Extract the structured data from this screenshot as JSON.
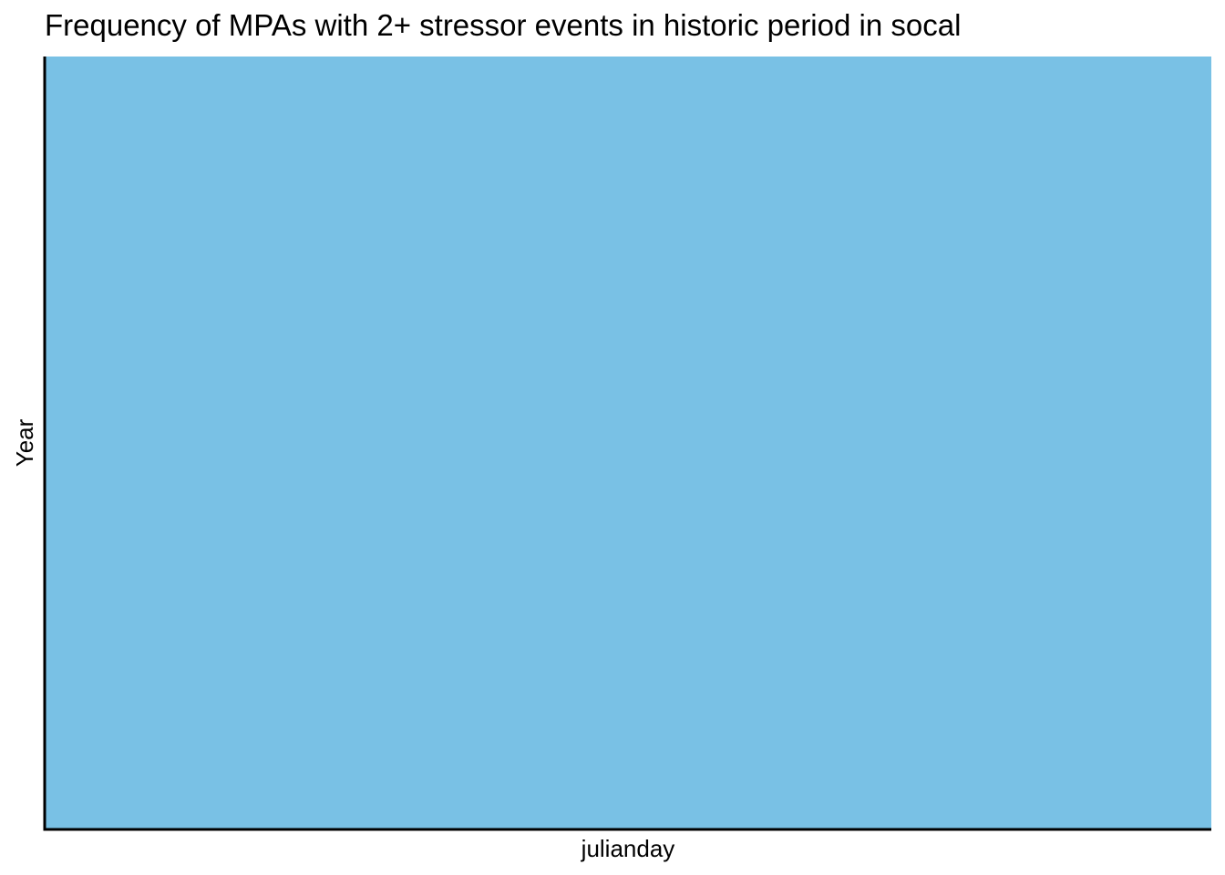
{
  "chart_data": {
    "type": "heatmap",
    "title": "Frequency of MPAs with 2+ stressor events in historic period in socal",
    "xlabel": "julianday",
    "ylabel": "Year",
    "grid": false,
    "legend": "none",
    "cells": [
      {
        "fill": "#79c1e5"
      }
    ]
  },
  "colors": {
    "fill": "#79c1e5",
    "axis": "#000000",
    "background": "#ffffff"
  }
}
